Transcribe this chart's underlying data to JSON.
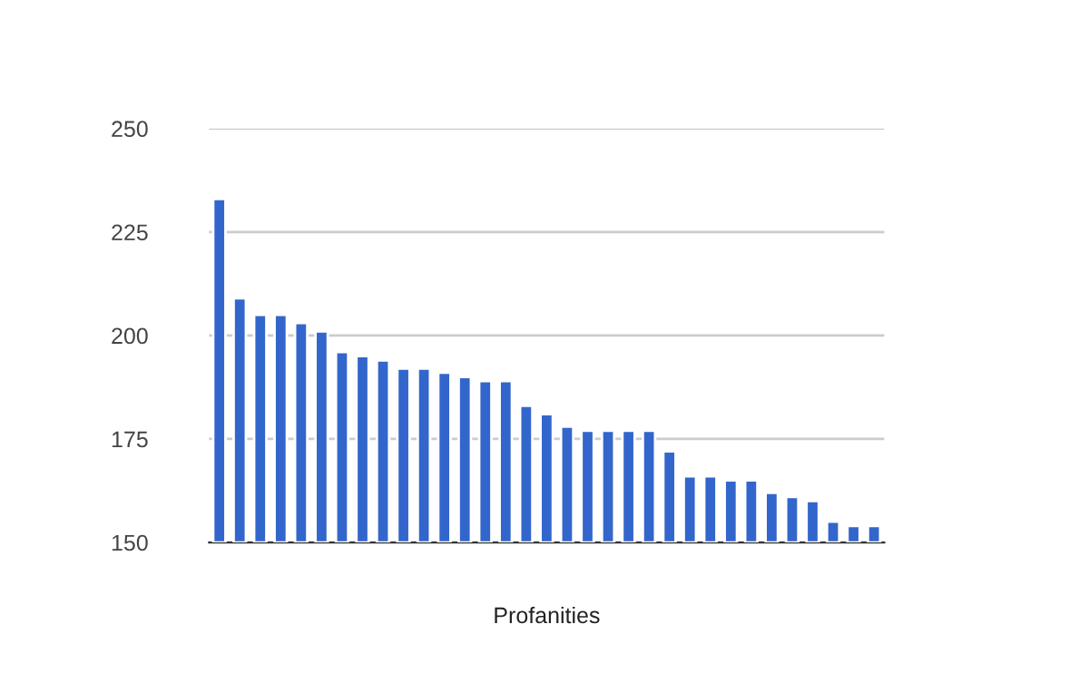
{
  "chart_data": {
    "type": "bar",
    "xlabel": "Profanities",
    "categories": [
      null,
      null,
      null,
      null,
      null,
      null,
      null,
      null,
      null,
      null,
      null,
      null,
      null,
      null,
      null,
      null,
      null,
      null,
      null,
      null,
      null,
      null,
      null,
      null,
      null,
      null,
      null,
      null,
      null,
      null,
      null,
      null,
      null
    ],
    "values": [
      233,
      209,
      205,
      205,
      203,
      201,
      196,
      195,
      194,
      192,
      192,
      191,
      190,
      189,
      189,
      183,
      181,
      178,
      177,
      177,
      177,
      177,
      172,
      166,
      166,
      165,
      165,
      162,
      161,
      160,
      155,
      154,
      154
    ],
    "color": "#3366cc",
    "ylim": [
      150,
      250
    ],
    "yticks": [
      150,
      175,
      200,
      225,
      250
    ],
    "grid": "y"
  }
}
